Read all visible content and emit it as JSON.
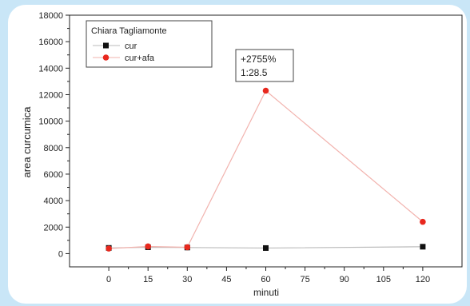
{
  "chart_data": {
    "type": "line",
    "title": "",
    "xlabel": "minuti",
    "ylabel": "area curcumica",
    "xlim": [
      -15,
      135
    ],
    "ylim": [
      -1000,
      18000
    ],
    "xticks": [
      0,
      15,
      30,
      45,
      60,
      75,
      90,
      105,
      120
    ],
    "yticks": [
      0,
      2000,
      4000,
      6000,
      8000,
      10000,
      12000,
      14000,
      16000,
      18000
    ],
    "grid": false,
    "legend": {
      "title": "Chiara Tagliamonte",
      "position": "top-left"
    },
    "series": [
      {
        "name": "cur",
        "color": "#111111",
        "line_color": "#bbbbbb",
        "x": [
          0,
          15,
          30,
          60,
          120
        ],
        "y": [
          430,
          480,
          460,
          420,
          520
        ]
      },
      {
        "name": "cur+afa",
        "color": "#e8281e",
        "line_color": "#f2b3ae",
        "x": [
          0,
          15,
          30,
          60,
          120
        ],
        "y": [
          380,
          540,
          480,
          12300,
          2400
        ]
      }
    ],
    "annotation": {
      "line1": "+2755%",
      "line2": "1:28.5"
    }
  }
}
